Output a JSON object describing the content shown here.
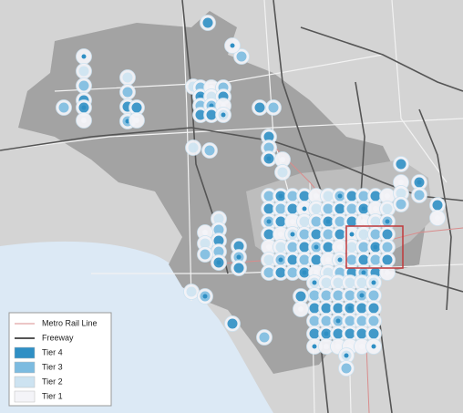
{
  "legend": {
    "items": [
      {
        "label": "Metro Rail Line",
        "kind": "line",
        "color": "#d98c8c"
      },
      {
        "label": "Freeway",
        "kind": "line",
        "color": "#555555"
      },
      {
        "label": "Tier 4",
        "kind": "swatch",
        "color": "#2f8fc4"
      },
      {
        "label": "Tier 3",
        "kind": "swatch",
        "color": "#7cbbe0"
      },
      {
        "label": "Tier 2",
        "kind": "swatch",
        "color": "#cde3f1"
      },
      {
        "label": "Tier 1",
        "kind": "swatch",
        "color": "#f4f4f8"
      }
    ]
  }
}
